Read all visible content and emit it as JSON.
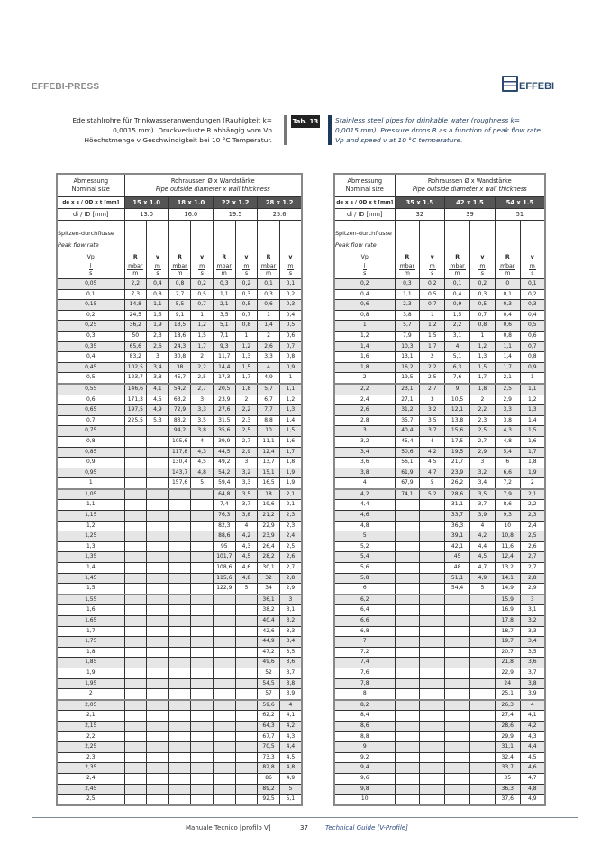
{
  "header": {
    "brand": "EFFEBI-PRESS",
    "logo_text": "EFFEBI"
  },
  "description": {
    "de": "Edelstahlrohre für Trinkwasseranwendungen (Rauhigkeit k= 0,0015 mm). Druckverluste R abhängig vom Vp Höechstmenge v Geschwindigkeit bei 10 °C Temperatur.",
    "tab": "Tab. 13",
    "en": "Stainless steel pipes for drinkable water (roughness k= 0,0015 mm). Pressure drops R as a function of peak flow rate Vp and speed v at 10 °C temperature."
  },
  "table_common": {
    "abm_de": "Abmessung",
    "abm_en": "Nominal size",
    "rohr_de": "Rohraussen Ø x Wandstärke",
    "rohr_en": "Pipe outside diameter x wall thickness",
    "od_label": "de x s / OD x t [mm]",
    "id_label": "di / ID [mm]",
    "flow_de": "Spitzen-durchflusse",
    "flow_en": "Peak flow rate",
    "vp": "Vp",
    "vp_unit_num": "l",
    "vp_unit_den": "s",
    "r": "R",
    "r_unit_num": "mbar",
    "r_unit_den": "m",
    "v": "v",
    "v_unit_num": "m",
    "v_unit_den": "s"
  },
  "left_table": {
    "sizes": [
      "15 x 1.0",
      "18 x 1.0",
      "22 x 1.2",
      "28 x 1.2"
    ],
    "ids": [
      "13.0",
      "16.0",
      "19.5",
      "25.6"
    ],
    "rows": [
      [
        "0,05",
        "2,2",
        "0,4",
        "0,8",
        "0,2",
        "0,3",
        "0,2",
        "0,1",
        "0,1"
      ],
      [
        "0,1",
        "7,3",
        "0,8",
        "2,7",
        "0,5",
        "1,1",
        "0,3",
        "0,3",
        "0,2"
      ],
      [
        "0,15",
        "14,8",
        "1,1",
        "5,5",
        "0,7",
        "2,1",
        "0,5",
        "0,6",
        "0,3"
      ],
      [
        "0,2",
        "24,5",
        "1,5",
        "9,1",
        "1",
        "3,5",
        "0,7",
        "1",
        "0,4"
      ],
      [
        "0,25",
        "36,2",
        "1,9",
        "13,5",
        "1,2",
        "5,1",
        "0,8",
        "1,4",
        "0,5"
      ],
      [
        "0,3",
        "50",
        "2,3",
        "18,6",
        "1,5",
        "7,1",
        "1",
        "2",
        "0,6"
      ],
      [
        "0,35",
        "65,6",
        "2,6",
        "24,3",
        "1,7",
        "9,3",
        "1,2",
        "2,6",
        "0,7"
      ],
      [
        "0,4",
        "83,2",
        "3",
        "30,8",
        "2",
        "11,7",
        "1,3",
        "3,3",
        "0,8"
      ],
      [
        "0,45",
        "102,5",
        "3,4",
        "38",
        "2,2",
        "14,4",
        "1,5",
        "4",
        "0,9"
      ],
      [
        "0,5",
        "123,7",
        "3,8",
        "45,7",
        "2,5",
        "17,3",
        "1,7",
        "4,9",
        "1"
      ],
      [
        "0,55",
        "146,6",
        "4,1",
        "54,2",
        "2,7",
        "20,5",
        "1,8",
        "5,7",
        "1,1"
      ],
      [
        "0,6",
        "171,3",
        "4,5",
        "63,2",
        "3",
        "23,9",
        "2",
        "6,7",
        "1,2"
      ],
      [
        "0,65",
        "197,5",
        "4,9",
        "72,9",
        "3,3",
        "27,6",
        "2,2",
        "7,7",
        "1,3"
      ],
      [
        "0,7",
        "225,5",
        "5,3",
        "83,2",
        "3,5",
        "31,5",
        "2,3",
        "8,8",
        "1,4"
      ],
      [
        "0,75",
        "",
        "",
        "94,2",
        "3,8",
        "35,6",
        "2,5",
        "10",
        "1,5"
      ],
      [
        "0,8",
        "",
        "",
        "105,6",
        "4",
        "39,9",
        "2,7",
        "11,1",
        "1,6"
      ],
      [
        "0,85",
        "",
        "",
        "117,8",
        "4,3",
        "44,5",
        "2,9",
        "12,4",
        "1,7"
      ],
      [
        "0,9",
        "",
        "",
        "130,4",
        "4,5",
        "49,2",
        "3",
        "13,7",
        "1,8"
      ],
      [
        "0,95",
        "",
        "",
        "143,7",
        "4,8",
        "54,2",
        "3,2",
        "15,1",
        "1,9"
      ],
      [
        "1",
        "",
        "",
        "157,6",
        "5",
        "59,4",
        "3,3",
        "16,5",
        "1,9"
      ],
      [
        "1,05",
        "",
        "",
        "",
        "",
        "64,8",
        "3,5",
        "18",
        "2,1"
      ],
      [
        "1,1",
        "",
        "",
        "",
        "",
        "7,4",
        "3,7",
        "19,6",
        "2,1"
      ],
      [
        "1,15",
        "",
        "",
        "",
        "",
        "76,3",
        "3,8",
        "21,2",
        "2,3"
      ],
      [
        "1,2",
        "",
        "",
        "",
        "",
        "82,3",
        "4",
        "22,9",
        "2,3"
      ],
      [
        "1,25",
        "",
        "",
        "",
        "",
        "88,6",
        "4,2",
        "23,9",
        "2,4"
      ],
      [
        "1,3",
        "",
        "",
        "",
        "",
        "95",
        "4,3",
        "26,4",
        "2,5"
      ],
      [
        "1,35",
        "",
        "",
        "",
        "",
        "101,7",
        "4,5",
        "28,2",
        "2,6"
      ],
      [
        "1,4",
        "",
        "",
        "",
        "",
        "108,6",
        "4,6",
        "30,1",
        "2,7"
      ],
      [
        "1,45",
        "",
        "",
        "",
        "",
        "115,6",
        "4,8",
        "32",
        "2,8"
      ],
      [
        "1,5",
        "",
        "",
        "",
        "",
        "122,9",
        "5",
        "34",
        "2,9"
      ],
      [
        "1,55",
        "",
        "",
        "",
        "",
        "",
        "",
        "36,1",
        "3"
      ],
      [
        "1,6",
        "",
        "",
        "",
        "",
        "",
        "",
        "38,2",
        "3,1"
      ],
      [
        "1,65",
        "",
        "",
        "",
        "",
        "",
        "",
        "40,4",
        "3,2"
      ],
      [
        "1,7",
        "",
        "",
        "",
        "",
        "",
        "",
        "42,6",
        "3,3"
      ],
      [
        "1,75",
        "",
        "",
        "",
        "",
        "",
        "",
        "44,9",
        "3,4"
      ],
      [
        "1,8",
        "",
        "",
        "",
        "",
        "",
        "",
        "47,2",
        "3,5"
      ],
      [
        "1,85",
        "",
        "",
        "",
        "",
        "",
        "",
        "49,6",
        "3,6"
      ],
      [
        "1,9",
        "",
        "",
        "",
        "",
        "",
        "",
        "52",
        "3,7"
      ],
      [
        "1,95",
        "",
        "",
        "",
        "",
        "",
        "",
        "54,5",
        "3,8"
      ],
      [
        "2",
        "",
        "",
        "",
        "",
        "",
        "",
        "57",
        "3,9"
      ],
      [
        "2,05",
        "",
        "",
        "",
        "",
        "",
        "",
        "59,6",
        "4"
      ],
      [
        "2,1",
        "",
        "",
        "",
        "",
        "",
        "",
        "62,2",
        "4,1"
      ],
      [
        "2,15",
        "",
        "",
        "",
        "",
        "",
        "",
        "64,3",
        "4,2"
      ],
      [
        "2,2",
        "",
        "",
        "",
        "",
        "",
        "",
        "67,7",
        "4,3"
      ],
      [
        "2,25",
        "",
        "",
        "",
        "",
        "",
        "",
        "70,5",
        "4,4"
      ],
      [
        "2,3",
        "",
        "",
        "",
        "",
        "",
        "",
        "73,3",
        "4,5"
      ],
      [
        "2,35",
        "",
        "",
        "",
        "",
        "",
        "",
        "82,8",
        "4,8"
      ],
      [
        "2,4",
        "",
        "",
        "",
        "",
        "",
        "",
        "86",
        "4,9"
      ],
      [
        "2,45",
        "",
        "",
        "",
        "",
        "",
        "",
        "89,2",
        "5"
      ],
      [
        "2,5",
        "",
        "",
        "",
        "",
        "",
        "",
        "92,5",
        "5,1"
      ]
    ]
  },
  "right_table": {
    "sizes": [
      "35 x 1.5",
      "42 x 1.5",
      "54 x 1.5"
    ],
    "ids": [
      "32",
      "39",
      "51"
    ],
    "rows": [
      [
        "0,2",
        "0,3",
        "0,2",
        "0,1",
        "0,2",
        "0",
        "0,1"
      ],
      [
        "0,4",
        "1,1",
        "0,5",
        "0,4",
        "0,3",
        "0,1",
        "0,2"
      ],
      [
        "0,6",
        "2,3",
        "0,7",
        "0,9",
        "0,5",
        "0,3",
        "0,3"
      ],
      [
        "0,8",
        "3,8",
        "1",
        "1,5",
        "0,7",
        "0,4",
        "0,4"
      ],
      [
        "1",
        "5,7",
        "1,2",
        "2,2",
        "0,8",
        "0,6",
        "0,5"
      ],
      [
        "1,2",
        "7,9",
        "1,5",
        "3,1",
        "1",
        "0,8",
        "0,6"
      ],
      [
        "1,4",
        "10,3",
        "1,7",
        "4",
        "1,2",
        "1,1",
        "0,7"
      ],
      [
        "1,6",
        "13,1",
        "2",
        "5,1",
        "1,3",
        "1,4",
        "0,8"
      ],
      [
        "1,8",
        "16,2",
        "2,2",
        "6,3",
        "1,5",
        "1,7",
        "0,9"
      ],
      [
        "2",
        "19,5",
        "2,5",
        "7,6",
        "1,7",
        "2,1",
        "1"
      ],
      [
        "2,2",
        "23,1",
        "2,7",
        "9",
        "1,8",
        "2,5",
        "1,1"
      ],
      [
        "2,4",
        "27,1",
        "3",
        "10,5",
        "2",
        "2,9",
        "1,2"
      ],
      [
        "2,6",
        "31,2",
        "3,2",
        "12,1",
        "2,2",
        "3,3",
        "1,3"
      ],
      [
        "2,8",
        "35,7",
        "3,5",
        "13,8",
        "2,3",
        "3,8",
        "1,4"
      ],
      [
        "3",
        "40,4",
        "3,7",
        "15,6",
        "2,5",
        "4,3",
        "1,5"
      ],
      [
        "3,2",
        "45,4",
        "4",
        "17,5",
        "2,7",
        "4,8",
        "1,6"
      ],
      [
        "3,4",
        "50,6",
        "4,2",
        "19,5",
        "2,9",
        "5,4",
        "1,7"
      ],
      [
        "3,6",
        "56,1",
        "4,5",
        "21,7",
        "3",
        "6",
        "1,8"
      ],
      [
        "3,8",
        "61,9",
        "4,7",
        "23,9",
        "3,2",
        "6,6",
        "1,9"
      ],
      [
        "4",
        "67,9",
        "5",
        "26,2",
        "3,4",
        "7,2",
        "2"
      ],
      [
        "4,2",
        "74,1",
        "5,2",
        "28,6",
        "3,5",
        "7,9",
        "2,1"
      ],
      [
        "4,4",
        "",
        "",
        "31,1",
        "3,7",
        "8,6",
        "2,2"
      ],
      [
        "4,6",
        "",
        "",
        "33,7",
        "3,9",
        "9,3",
        "2,3"
      ],
      [
        "4,8",
        "",
        "",
        "36,3",
        "4",
        "10",
        "2,4"
      ],
      [
        "5",
        "",
        "",
        "39,1",
        "4,2",
        "10,8",
        "2,5"
      ],
      [
        "5,2",
        "",
        "",
        "42,1",
        "4,4",
        "11,6",
        "2,6"
      ],
      [
        "5,4",
        "",
        "",
        "45",
        "4,5",
        "12,4",
        "2,7"
      ],
      [
        "5,6",
        "",
        "",
        "48",
        "4,7",
        "13,2",
        "2,7"
      ],
      [
        "5,8",
        "",
        "",
        "51,1",
        "4,9",
        "14,1",
        "2,8"
      ],
      [
        "6",
        "",
        "",
        "54,4",
        "5",
        "14,9",
        "2,9"
      ],
      [
        "6,2",
        "",
        "",
        "",
        "",
        "15,9",
        "3"
      ],
      [
        "6,4",
        "",
        "",
        "",
        "",
        "16,9",
        "3,1"
      ],
      [
        "6,6",
        "",
        "",
        "",
        "",
        "17,8",
        "3,2"
      ],
      [
        "6,8",
        "",
        "",
        "",
        "",
        "18,7",
        "3,3"
      ],
      [
        "7",
        "",
        "",
        "",
        "",
        "19,7",
        "3,4"
      ],
      [
        "7,2",
        "",
        "",
        "",
        "",
        "20,7",
        "3,5"
      ],
      [
        "7,4",
        "",
        "",
        "",
        "",
        "21,8",
        "3,6"
      ],
      [
        "7,6",
        "",
        "",
        "",
        "",
        "22,9",
        "3,7"
      ],
      [
        "7,8",
        "",
        "",
        "",
        "",
        "24",
        "3,8"
      ],
      [
        "8",
        "",
        "",
        "",
        "",
        "25,1",
        "3,9"
      ],
      [
        "8,2",
        "",
        "",
        "",
        "",
        "26,3",
        "4"
      ],
      [
        "8,4",
        "",
        "",
        "",
        "",
        "27,4",
        "4,1"
      ],
      [
        "8,6",
        "",
        "",
        "",
        "",
        "28,6",
        "4,2"
      ],
      [
        "8,8",
        "",
        "",
        "",
        "",
        "29,9",
        "4,3"
      ],
      [
        "9",
        "",
        "",
        "",
        "",
        "31,1",
        "4,4"
      ],
      [
        "9,2",
        "",
        "",
        "",
        "",
        "32,4",
        "4,5"
      ],
      [
        "9,4",
        "",
        "",
        "",
        "",
        "33,7",
        "4,6"
      ],
      [
        "9,6",
        "",
        "",
        "",
        "",
        "35",
        "4,7"
      ],
      [
        "9,8",
        "",
        "",
        "",
        "",
        "36,3",
        "4,8"
      ],
      [
        "10",
        "",
        "",
        "",
        "",
        "37,6",
        "4,9"
      ]
    ]
  },
  "footer": {
    "de": "Manuale Tecnico [profilo V]",
    "page": "37",
    "en": "Technical Guide [V-Profile]"
  },
  "colors": {
    "row_shade": "#e6e6e6",
    "header_dark": "#555555",
    "brand_blue": "#2c4a70"
  }
}
